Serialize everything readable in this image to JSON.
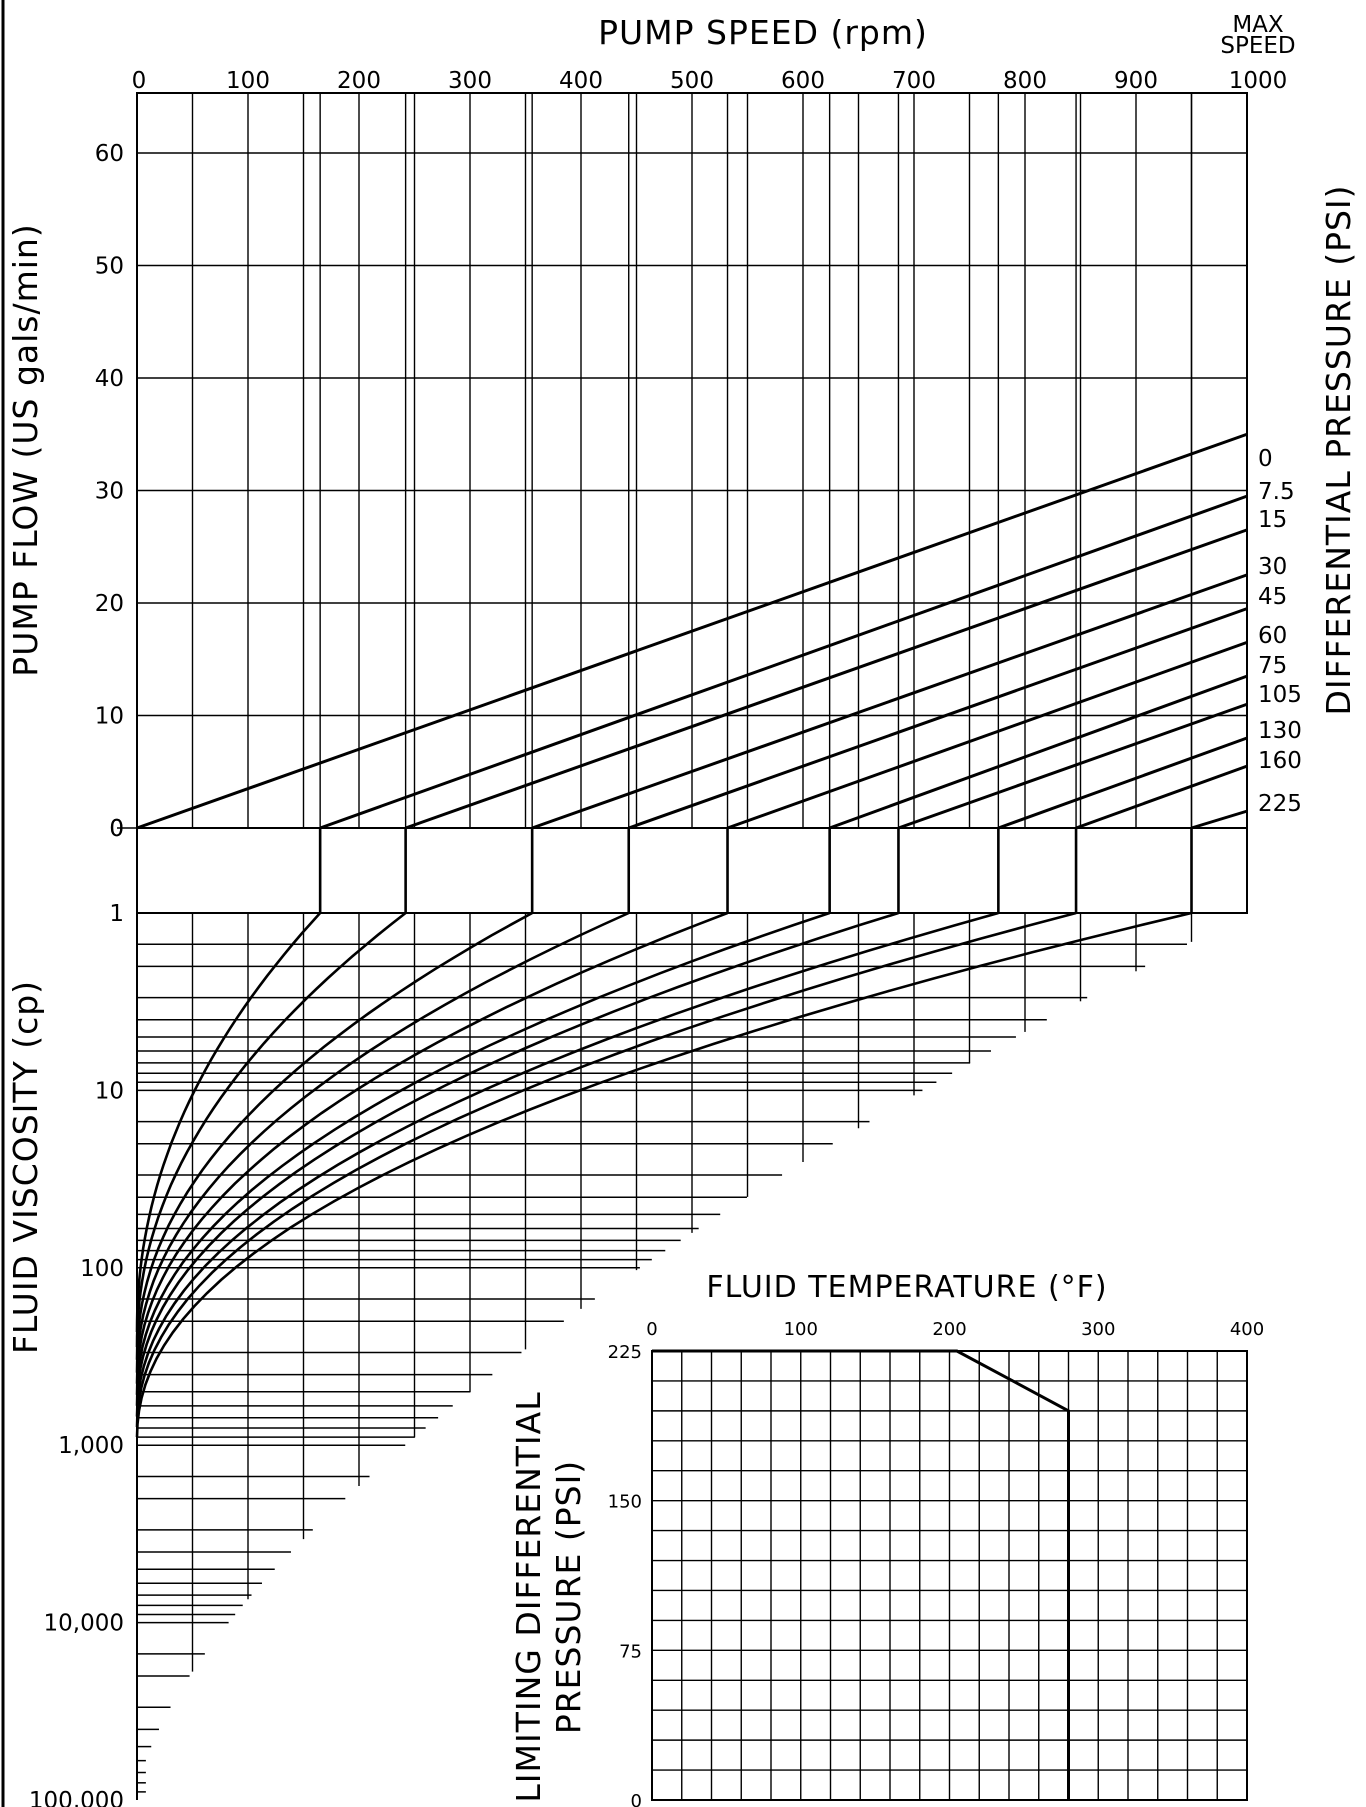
{
  "chart_data": [
    {
      "type": "line",
      "name": "flow-speed-nomogram",
      "title": "",
      "x_axis": {
        "label": "PUMP SPEED (rpm)",
        "position": "top",
        "range": [
          0,
          1000
        ],
        "ticks": [
          "0",
          "100",
          "200",
          "300",
          "400",
          "500",
          "600",
          "700",
          "800",
          "900",
          "1000"
        ],
        "max_label": [
          "MAX",
          "SPEED"
        ]
      },
      "y_axis": {
        "label": "PUMP FLOW (US gals/min)",
        "range": [
          0,
          65
        ],
        "ticks": [
          "0",
          "10",
          "20",
          "30",
          "40",
          "50",
          "60"
        ]
      },
      "right_axis_label": "DIFFERENTIAL PRESSURE (PSI)",
      "series": [
        {
          "name": "0",
          "x": [
            0,
            1000
          ],
          "y": [
            0,
            35
          ]
        },
        {
          "name": "7.5",
          "x": [
            165,
            1000
          ],
          "y": [
            0,
            29.5
          ]
        },
        {
          "name": "15",
          "x": [
            242,
            1000
          ],
          "y": [
            0,
            26.5
          ]
        },
        {
          "name": "30",
          "x": [
            356,
            1000
          ],
          "y": [
            0,
            22.5
          ]
        },
        {
          "name": "45",
          "x": [
            443,
            1000
          ],
          "y": [
            0,
            19.5
          ]
        },
        {
          "name": "60",
          "x": [
            532,
            1000
          ],
          "y": [
            0,
            16.5
          ]
        },
        {
          "name": "75",
          "x": [
            624,
            1000
          ],
          "y": [
            0,
            13.5
          ]
        },
        {
          "name": "105",
          "x": [
            686,
            1000
          ],
          "y": [
            0,
            11
          ]
        },
        {
          "name": "130",
          "x": [
            776,
            1000
          ],
          "y": [
            0,
            8
          ]
        },
        {
          "name": "160",
          "x": [
            846,
            1000
          ],
          "y": [
            0,
            5.5
          ]
        },
        {
          "name": "225",
          "x": [
            950,
            1000
          ],
          "y": [
            0,
            1.5
          ]
        }
      ],
      "grid": true
    },
    {
      "type": "line",
      "name": "viscosity-correction",
      "title": "",
      "y_axis": {
        "label": "FLUID VISCOSITY (cp)",
        "scale": "log",
        "range": [
          1,
          100000
        ],
        "ticks": [
          "1",
          "10",
          "100",
          "1,000",
          "10,000",
          "100,000"
        ]
      },
      "x_axis": {
        "range": [
          0,
          1000
        ]
      },
      "curves_start_rpm": [
        165,
        242,
        356,
        443,
        532,
        624,
        686,
        776,
        846,
        950
      ],
      "curves_end_viscosity": [
        230,
        280,
        330,
        390,
        450,
        520,
        600,
        690,
        790,
        900
      ],
      "grid": true
    },
    {
      "type": "line",
      "name": "limiting-pressure-vs-temperature",
      "title": "FLUID TEMPERATURE (°F)",
      "x_axis": {
        "label": "FLUID TEMPERATURE (°F)",
        "range": [
          0,
          400
        ],
        "ticks": [
          "0",
          "100",
          "200",
          "300",
          "400"
        ]
      },
      "y_axis": {
        "label": [
          "LIMITING DIFFERENTIAL",
          "PRESSURE (PSI)"
        ],
        "range": [
          0,
          225
        ],
        "ticks": [
          "0",
          "75",
          "150",
          "225"
        ]
      },
      "series": [
        {
          "name": "limit",
          "x": [
            0,
            205,
            280,
            280
          ],
          "y": [
            225,
            225,
            195,
            0
          ]
        }
      ],
      "grid": true
    }
  ]
}
